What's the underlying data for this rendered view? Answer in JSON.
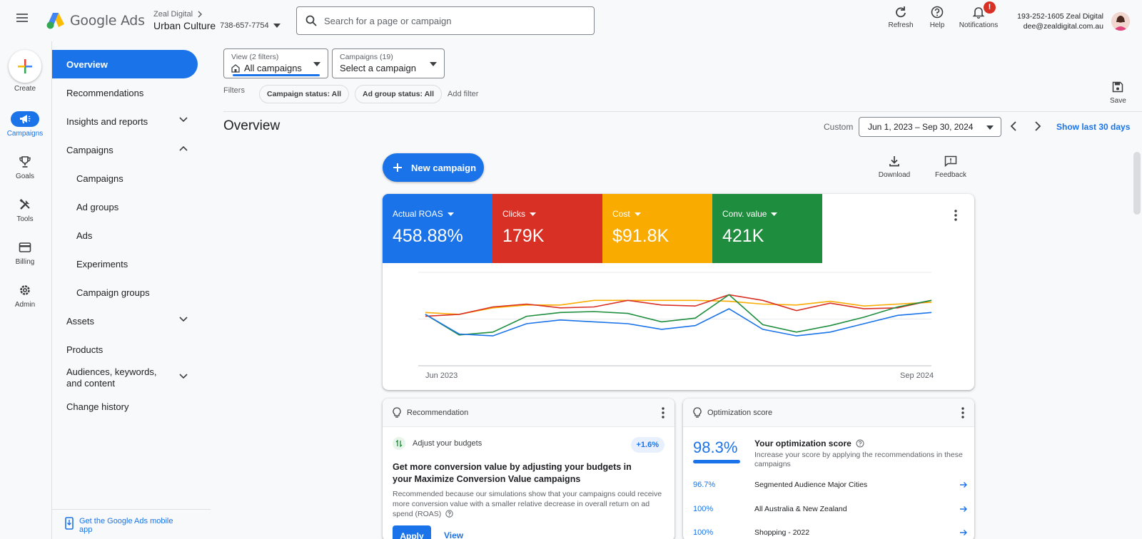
{
  "header": {
    "product_name": "Google Ads",
    "account_parent": "Zeal Digital",
    "account_name": "Urban Culture",
    "account_id": "738-657-7754",
    "search_placeholder": "Search for a page or campaign",
    "refresh_label": "Refresh",
    "help_label": "Help",
    "notifications_label": "Notifications",
    "notifications_badge": "!",
    "user_line1": "193-252-1605 Zeal Digital",
    "user_email": "dee@zealdigital.com.au"
  },
  "rail": {
    "create_label": "Create",
    "items": [
      {
        "label": "Campaigns",
        "icon": "megaphone-icon",
        "active": true
      },
      {
        "label": "Goals",
        "icon": "trophy-icon",
        "active": false
      },
      {
        "label": "Tools",
        "icon": "tools-icon",
        "active": false
      },
      {
        "label": "Billing",
        "icon": "credit-card-icon",
        "active": false
      },
      {
        "label": "Admin",
        "icon": "gear-icon",
        "active": false
      }
    ]
  },
  "nav": {
    "items": [
      {
        "label": "Overview"
      },
      {
        "label": "Recommendations"
      },
      {
        "label": "Insights and reports"
      },
      {
        "label": "Campaigns"
      },
      {
        "label": "Campaigns"
      },
      {
        "label": "Ad groups"
      },
      {
        "label": "Ads"
      },
      {
        "label": "Experiments"
      },
      {
        "label": "Campaign groups"
      },
      {
        "label": "Assets"
      },
      {
        "label": "Products"
      },
      {
        "label": "Audiences, keywords, and content"
      },
      {
        "label": "Change history"
      }
    ],
    "mobile_app_label": "Get the Google Ads mobile app"
  },
  "filters": {
    "view_label": "View (2 filters)",
    "view_value": "All campaigns",
    "campaigns_label": "Campaigns (19)",
    "campaigns_value": "Select a campaign",
    "filters_label": "Filters",
    "chip_campaign_status": "Campaign status: All",
    "chip_adgroup_status": "Ad group status: All",
    "add_filter": "Add filter",
    "save_label": "Save"
  },
  "overview": {
    "title": "Overview",
    "date_mode": "Custom",
    "date_range": "Jun 1, 2023 – Sep 30, 2024",
    "show_last": "Show last 30 days",
    "new_campaign": "New campaign",
    "download": "Download",
    "feedback": "Feedback"
  },
  "metrics": [
    {
      "label": "Actual ROAS",
      "value": "458.88%",
      "color": "#1a73e8"
    },
    {
      "label": "Clicks",
      "value": "179K",
      "color": "#d93025"
    },
    {
      "label": "Cost",
      "value": "$91.8K",
      "color": "#f9ab00"
    },
    {
      "label": "Conv. value",
      "value": "421K",
      "color": "#1e8e3e"
    }
  ],
  "chart_data": {
    "type": "line",
    "x_start_label": "Jun 2023",
    "x_end_label": "Sep 2024",
    "grid": true,
    "series": [
      {
        "name": "Actual ROAS",
        "color": "#1a73e8",
        "values": [
          55,
          34,
          32,
          45,
          49,
          47,
          45,
          39,
          43,
          61,
          39,
          32,
          36,
          45,
          54,
          57
        ]
      },
      {
        "name": "Clicks",
        "color": "#d93025",
        "values": [
          53,
          55,
          63,
          66,
          62,
          63,
          70,
          65,
          64,
          76,
          70,
          59,
          67,
          61,
          62,
          70
        ]
      },
      {
        "name": "Cost",
        "color": "#f9ab00",
        "values": [
          57,
          55,
          62,
          65,
          65,
          70,
          70,
          70,
          70,
          69,
          66,
          65,
          69,
          64,
          66,
          68
        ]
      },
      {
        "name": "Conv. value",
        "color": "#1e8e3e",
        "values": [
          55,
          33,
          36,
          53,
          57,
          58,
          56,
          47,
          51,
          76,
          44,
          36,
          43,
          52,
          63,
          70
        ]
      }
    ]
  },
  "recommendation": {
    "header": "Recommendation",
    "sub": "Adjust your budgets",
    "badge": "+1.6%",
    "title": "Get more conversion value by adjusting your budgets in your Maximize Conversion Value campaigns",
    "body": "Recommended because our simulations show that your campaigns could receive more conversion value with a smaller relative decrease in overall return on ad spend (ROAS)",
    "apply": "Apply",
    "view": "View"
  },
  "optimization": {
    "header": "Optimization score",
    "score": "98.3%",
    "score_fraction": 0.983,
    "title": "Your optimization score",
    "desc": "Increase your score by applying the recommendations in these campaigns",
    "rows": [
      {
        "pct": "96.7%",
        "name": "Segmented Audience Major Cities"
      },
      {
        "pct": "100%",
        "name": "All Australia & New Zealand"
      },
      {
        "pct": "100%",
        "name": "Shopping - 2022"
      }
    ]
  }
}
